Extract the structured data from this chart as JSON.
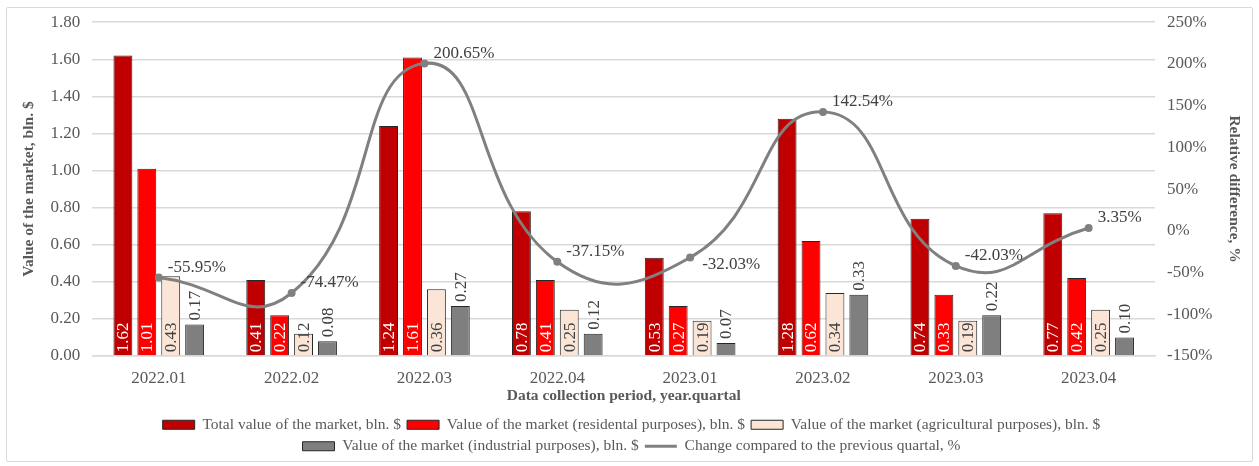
{
  "chart_data": {
    "type": "bar",
    "xlabel": "Data collection period, year.quartal",
    "ylabel": "Value of the market, bln. $",
    "y2label": "Relative difference, %",
    "categories": [
      "2022.01",
      "2022.02",
      "2022.03",
      "2022.04",
      "2023.01",
      "2023.02",
      "2023.03",
      "2023.04"
    ],
    "series": [
      {
        "name": "Total value of the market, bln. $",
        "color": "#c00000",
        "values": [
          1.62,
          0.41,
          1.24,
          0.78,
          0.53,
          1.28,
          0.74,
          0.77
        ],
        "value_labels": [
          "1.62",
          "0.41",
          "1.24",
          "0.78",
          "0.53",
          "1.28",
          "0.74",
          "0.77"
        ]
      },
      {
        "name": "Value of the market (residental purposes), bln. $",
        "color": "#ff0000",
        "values": [
          1.01,
          0.22,
          1.61,
          0.41,
          0.27,
          0.62,
          0.33,
          0.42
        ],
        "value_labels": [
          "1.01",
          "0.22",
          "1.61",
          "0.41",
          "0.27",
          "0.62",
          "0.33",
          "0.42"
        ]
      },
      {
        "name": "Value of the market (agricultural purposes), bln. $",
        "color": "#fbe5d6",
        "values": [
          0.43,
          0.12,
          0.36,
          0.25,
          0.19,
          0.34,
          0.19,
          0.25
        ],
        "value_labels": [
          "0.43",
          "0.12",
          "0.36",
          "0.25",
          "0.19",
          "0.34",
          "0.19",
          "0.25"
        ]
      },
      {
        "name": "Value of the market (industrial purposes), bln. $",
        "color": "#7f7f7f",
        "values": [
          0.17,
          0.08,
          0.27,
          0.12,
          0.07,
          0.33,
          0.22,
          0.1
        ],
        "value_labels": [
          "0.17",
          "0.08",
          "0.27",
          "0.12",
          "0.07",
          "0.33",
          "0.22",
          "0.10"
        ]
      },
      {
        "name": "Change compared to the previous quartal, %",
        "type": "line",
        "axis": "y2",
        "color": "#808080",
        "values": [
          -55.95,
          -74.47,
          200.65,
          -37.15,
          -32.03,
          142.54,
          -42.03,
          3.35
        ],
        "value_labels": [
          "-55.95%",
          "-74.47%",
          "200.65%",
          "-37.15%",
          "-32.03%",
          "142.54%",
          "-42.03%",
          "3.35%"
        ]
      }
    ],
    "ylim": [
      0,
      1.8
    ],
    "yticks": [
      {
        "value": 0,
        "label": "0.00"
      },
      {
        "value": 0.2,
        "label": "0.20"
      },
      {
        "value": 0.4,
        "label": "0.40"
      },
      {
        "value": 0.6,
        "label": "0.60"
      },
      {
        "value": 0.8,
        "label": "0.80"
      },
      {
        "value": 1,
        "label": "1.00"
      },
      {
        "value": 1.2,
        "label": "1.20"
      },
      {
        "value": 1.4,
        "label": "1.40"
      },
      {
        "value": 1.6,
        "label": "1.60"
      },
      {
        "value": 1.8,
        "label": "1.80"
      }
    ],
    "y2lim": [
      -150,
      250
    ],
    "y2ticks": [
      {
        "value": -150,
        "label": "-150%"
      },
      {
        "value": -100,
        "label": "-100%"
      },
      {
        "value": -50,
        "label": "-50%"
      },
      {
        "value": 0,
        "label": "0%"
      },
      {
        "value": 50,
        "label": "50%"
      },
      {
        "value": 100,
        "label": "100%"
      },
      {
        "value": 150,
        "label": "150%"
      },
      {
        "value": 200,
        "label": "200%"
      },
      {
        "value": 250,
        "label": "250%"
      }
    ],
    "grid": "y",
    "legend": "bottom",
    "marker": "circle"
  }
}
